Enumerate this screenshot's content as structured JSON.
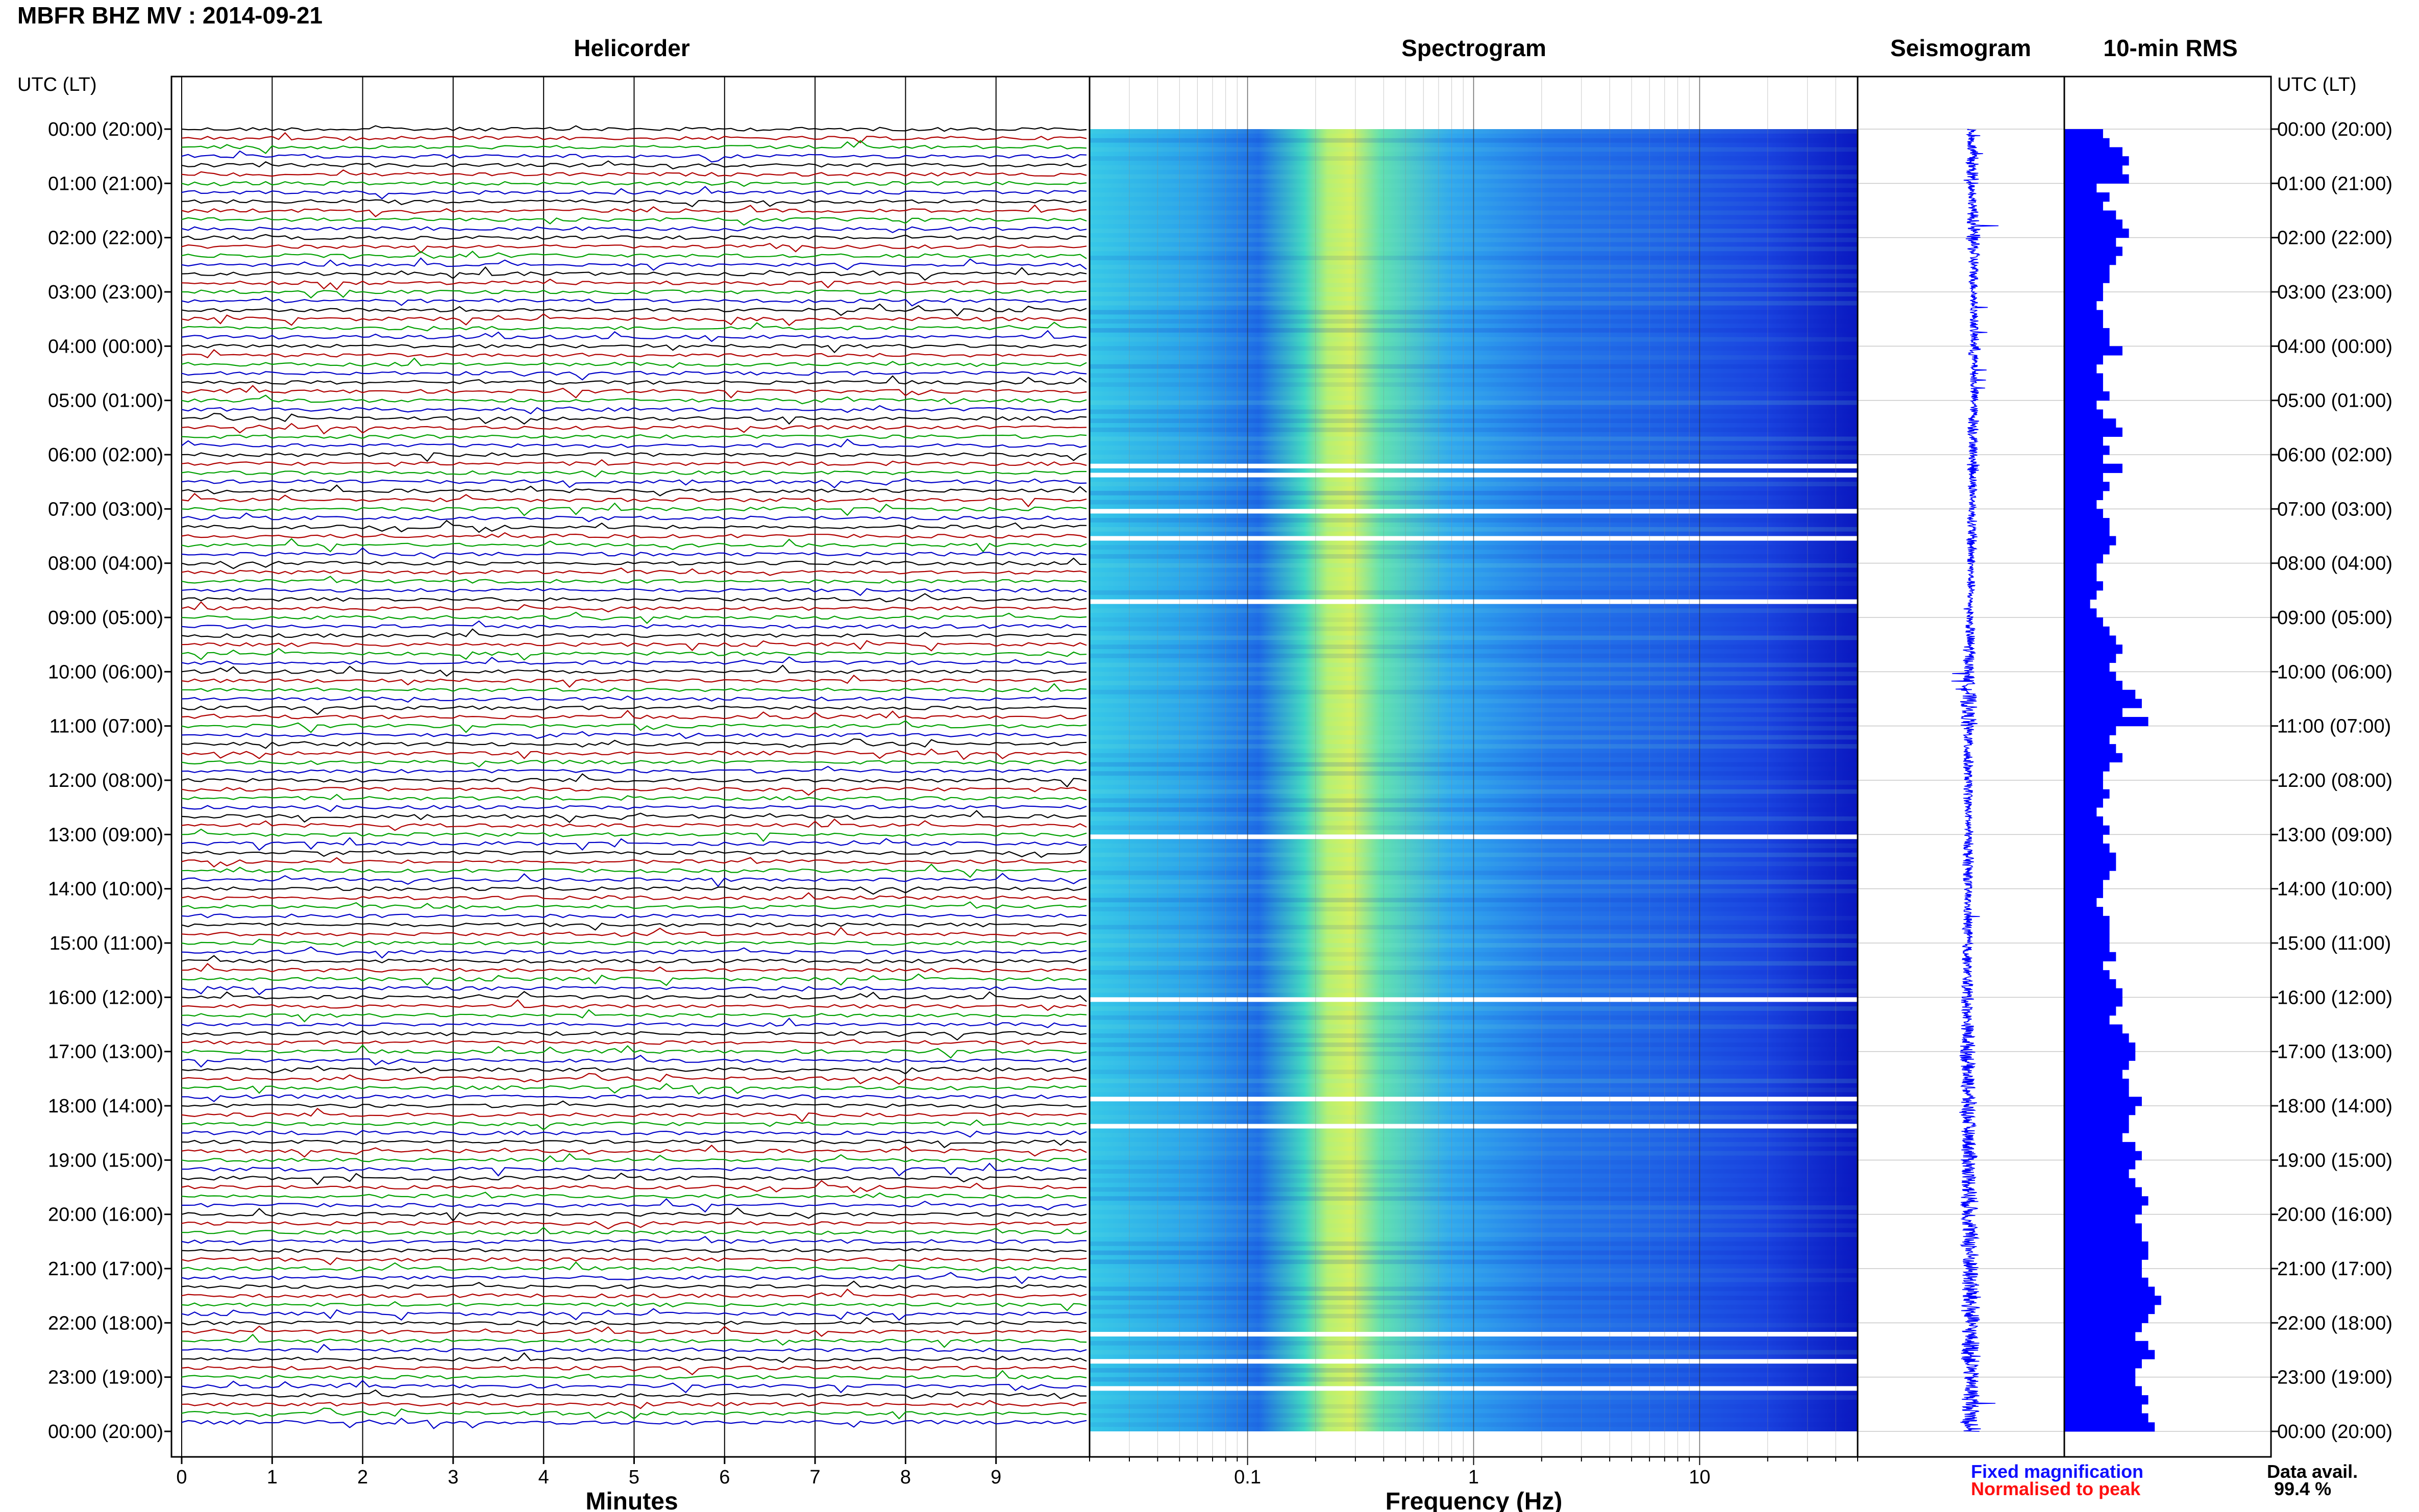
{
  "station_title": "MBFR BHZ MV : 2014-09-21",
  "panels": {
    "helicorder": "Helicorder",
    "spectrogram": "Spectrogram",
    "seismogram": "Seismogram",
    "rms": "10-min RMS"
  },
  "time_axis": {
    "header_left": "UTC (LT)",
    "header_right": "UTC (LT)",
    "labels": [
      "00:00 (20:00)",
      "01:00 (21:00)",
      "02:00 (22:00)",
      "03:00 (23:00)",
      "04:00 (00:00)",
      "05:00 (01:00)",
      "06:00 (02:00)",
      "07:00 (03:00)",
      "08:00 (04:00)",
      "09:00 (05:00)",
      "10:00 (06:00)",
      "11:00 (07:00)",
      "12:00 (08:00)",
      "13:00 (09:00)",
      "14:00 (10:00)",
      "15:00 (11:00)",
      "16:00 (12:00)",
      "17:00 (13:00)",
      "18:00 (14:00)",
      "19:00 (15:00)",
      "20:00 (16:00)",
      "21:00 (17:00)",
      "22:00 (18:00)",
      "23:00 (19:00)",
      "00:00 (20:00)"
    ]
  },
  "helicorder_axis": {
    "xlabel": "Minutes",
    "ticks": [
      "0",
      "1",
      "2",
      "3",
      "4",
      "5",
      "6",
      "7",
      "8",
      "9"
    ],
    "trace_colors": [
      "#000000",
      "#b00000",
      "#00a000",
      "#0000c8"
    ]
  },
  "spectrogram_axis": {
    "xlabel": "Frequency (Hz)",
    "ticks": [
      "0.1",
      "1",
      "10"
    ],
    "scale": "log"
  },
  "legend": {
    "fixed": "Fixed magnification",
    "fixed_color": "#1010ff",
    "normalised": "Normalised to peak",
    "normalised_color": "#ff1010",
    "data_avail_label": "Data avail.",
    "data_avail_value": "99.4 %"
  },
  "chart_data": [
    {
      "type": "line",
      "title": "Helicorder",
      "xlabel": "Minutes",
      "xlim": [
        0,
        10
      ],
      "rows_per_hour": 6,
      "hours": 24,
      "colors": [
        "#000000",
        "#b00000",
        "#00a000",
        "#0000c8"
      ]
    },
    {
      "type": "heatmap",
      "title": "Spectrogram",
      "xlabel": "Frequency (Hz)",
      "x_scale": "log",
      "xlim": [
        0.02,
        50
      ],
      "peak_frequency_hz": 0.25,
      "colormap": [
        "#1010e0",
        "#1e6cf0",
        "#30b0f0",
        "#40e0c8",
        "#c8f060"
      ],
      "data_gaps_utc": [
        "06:10",
        "06:20",
        "07:00",
        "07:30",
        "08:40",
        "13:00",
        "16:00",
        "17:50",
        "18:20",
        "22:10",
        "22:40",
        "23:10"
      ]
    },
    {
      "type": "line",
      "title": "Seismogram",
      "color": "#0000ff"
    },
    {
      "type": "bar",
      "title": "10-min RMS",
      "orientation": "horizontal",
      "color": "#0000ff",
      "categories_note": "144 ten-minute intervals",
      "values": [
        0.6,
        0.7,
        0.9,
        1.0,
        0.9,
        1.0,
        0.5,
        0.7,
        0.6,
        0.8,
        0.9,
        1.0,
        0.8,
        0.9,
        0.8,
        0.7,
        0.7,
        0.6,
        0.6,
        0.5,
        0.6,
        0.6,
        0.7,
        0.7,
        0.9,
        0.6,
        0.5,
        0.6,
        0.6,
        0.7,
        0.5,
        0.6,
        0.8,
        0.9,
        0.6,
        0.7,
        0.6,
        0.9,
        0.6,
        0.7,
        0.6,
        0.5,
        0.6,
        0.7,
        0.7,
        0.8,
        0.7,
        0.6,
        0.5,
        0.5,
        0.6,
        0.5,
        0.4,
        0.5,
        0.6,
        0.7,
        0.8,
        0.9,
        0.8,
        0.7,
        0.8,
        0.9,
        1.1,
        1.2,
        0.9,
        1.3,
        0.8,
        0.7,
        0.8,
        0.9,
        0.7,
        0.6,
        0.6,
        0.7,
        0.6,
        0.5,
        0.6,
        0.7,
        0.6,
        0.7,
        0.8,
        0.8,
        0.7,
        0.6,
        0.6,
        0.5,
        0.6,
        0.7,
        0.7,
        0.7,
        0.7,
        0.8,
        0.6,
        0.7,
        0.8,
        0.9,
        0.9,
        0.8,
        0.7,
        0.9,
        1.0,
        1.1,
        1.1,
        1.0,
        0.9,
        1.0,
        1.0,
        1.2,
        1.1,
        1.0,
        1.0,
        0.9,
        1.1,
        1.2,
        1.1,
        1.0,
        1.1,
        1.2,
        1.3,
        1.2,
        1.1,
        1.2,
        1.2,
        1.3,
        1.3,
        1.2,
        1.2,
        1.3,
        1.4,
        1.5,
        1.4,
        1.3,
        1.2,
        1.1,
        1.3,
        1.4,
        1.2,
        1.1,
        1.1,
        1.2,
        1.3,
        1.2,
        1.3,
        1.4
      ]
    }
  ]
}
